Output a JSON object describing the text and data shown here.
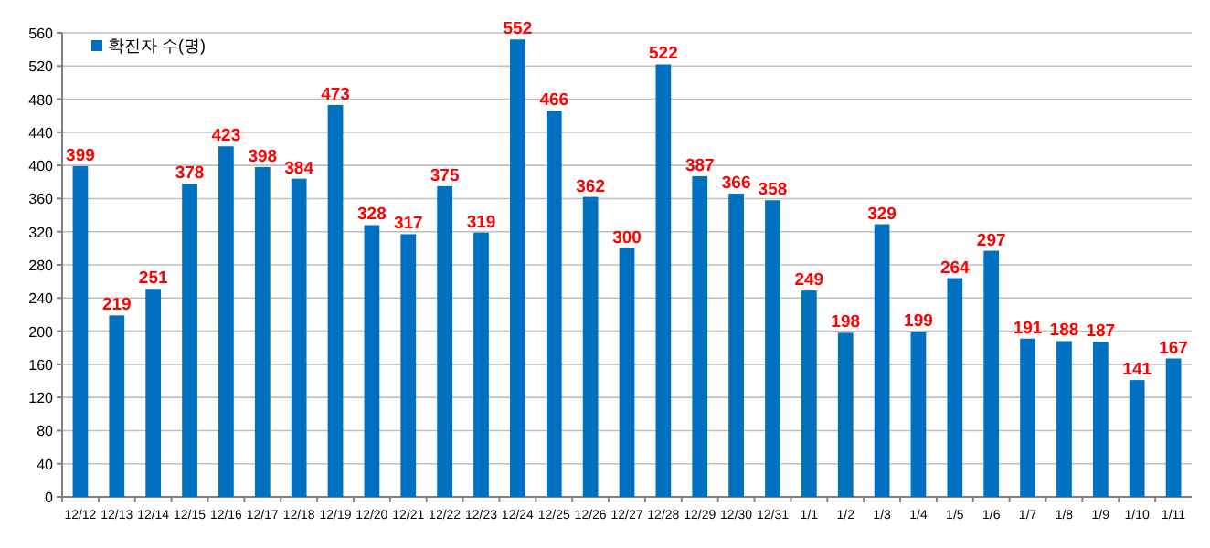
{
  "chart_data": {
    "type": "bar",
    "categories": [
      "12/12",
      "12/13",
      "12/14",
      "12/15",
      "12/16",
      "12/17",
      "12/18",
      "12/19",
      "12/20",
      "12/21",
      "12/22",
      "12/23",
      "12/24",
      "12/25",
      "12/26",
      "12/27",
      "12/28",
      "12/29",
      "12/30",
      "12/31",
      "1/1",
      "1/2",
      "1/3",
      "1/4",
      "1/5",
      "1/6",
      "1/7",
      "1/8",
      "1/9",
      "1/10",
      "1/11"
    ],
    "series": [
      {
        "name": "확진자 수(명)",
        "color": "#0070c0",
        "values": [
          399,
          219,
          251,
          378,
          423,
          398,
          384,
          473,
          328,
          317,
          375,
          319,
          552,
          466,
          362,
          300,
          522,
          387,
          366,
          358,
          249,
          198,
          329,
          199,
          264,
          297,
          191,
          188,
          187,
          141,
          167
        ]
      }
    ],
    "ylim": [
      0,
      560
    ],
    "yticks": [
      0,
      40,
      80,
      120,
      160,
      200,
      240,
      280,
      320,
      360,
      400,
      440,
      480,
      520,
      560
    ],
    "grid": "y",
    "legend": "top left",
    "data_labels": true
  }
}
